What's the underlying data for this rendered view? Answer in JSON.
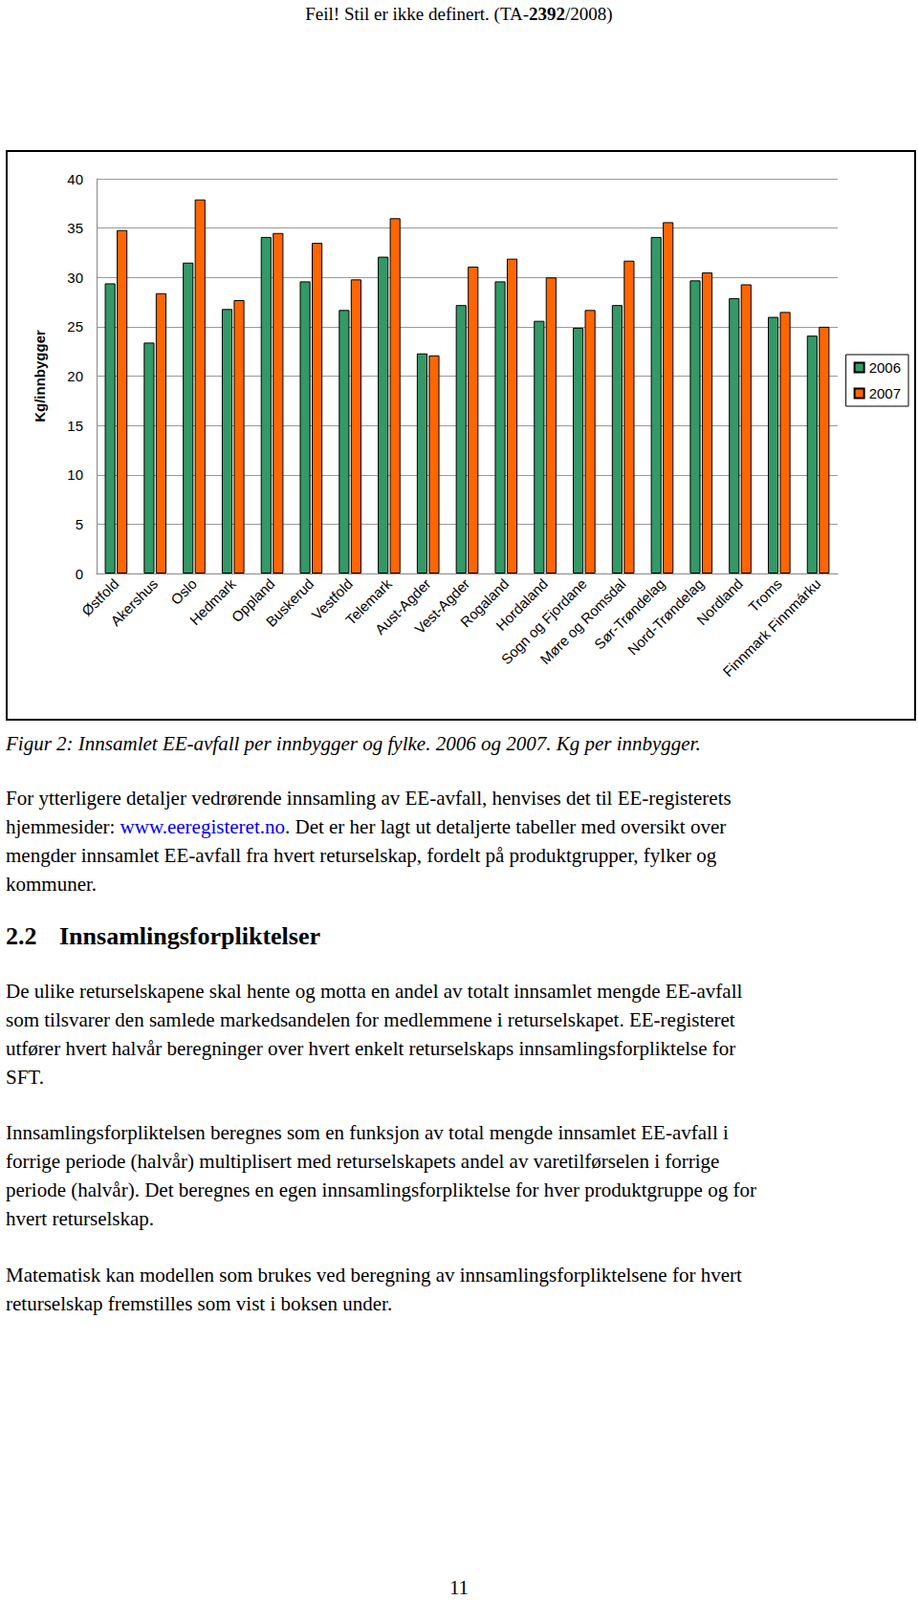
{
  "header": [
    {
      "text": "Feil! Stil er ikke definert. (TA-"
    },
    {
      "text": "2392",
      "bold": true
    },
    {
      "text": "/2008)"
    }
  ],
  "chart_data": {
    "type": "bar",
    "y_label": "Kg/innbygger",
    "categories": [
      "Østfold",
      "Akershus",
      "Oslo",
      "Hedmark",
      "Oppland",
      "Buskerud",
      "Vestfold",
      "Telemark",
      "Aust-Agder",
      "Vest-Agder",
      "Rogaland",
      "Hordaland",
      "Sogn og Fjordane",
      "Møre og Romsdal",
      "Sør-Trøndelag",
      "Nord-Trøndelag",
      "Nordland",
      "Troms",
      "Finnmark Finnmárku"
    ],
    "series": [
      {
        "name": "2006",
        "color": "#339966",
        "values": [
          29.4,
          23.4,
          31.5,
          26.8,
          34.1,
          29.6,
          26.7,
          32.1,
          22.3,
          27.2,
          29.6,
          25.6,
          24.9,
          27.2,
          34.1,
          29.7,
          27.9,
          26.0,
          24.1
        ]
      },
      {
        "name": "2007",
        "color": "#ff6600",
        "values": [
          34.8,
          28.4,
          37.9,
          27.7,
          34.5,
          33.5,
          29.8,
          36.0,
          22.1,
          31.1,
          31.9,
          30.0,
          26.7,
          31.7,
          35.6,
          30.5,
          29.3,
          26.5,
          25.0
        ]
      }
    ],
    "ylim": [
      0,
      40
    ],
    "yticks": [
      0,
      5,
      10,
      15,
      20,
      25,
      30,
      35,
      40
    ],
    "grid": true,
    "legend": "right"
  },
  "caption": "Figur 2: Innsamlet EE-avfall per innbygger og fylke. 2006 og 2007. Kg per innbygger.",
  "paragraph": [
    "For ytterligere detaljer vedrørende innsamling av EE-avfall, henvises det til EE-registerets",
    [
      {
        "text": "hjemmesider: "
      },
      {
        "text": "www.eeregisteret.no",
        "link": true
      },
      {
        "text": ". Det er her lagt ut detaljerte tabeller med oversikt over"
      }
    ],
    "mengder innsamlet EE-avfall fra hvert returselskap, fordelt på produktgrupper, fylker og",
    "kommuner."
  ],
  "section": {
    "number": "2.2",
    "title": "Innsamlingsforpliktelser",
    "paragraphs": [
      [
        "De ulike returselskapene skal hente og motta en andel av totalt innsamlet mengde EE-avfall",
        "som tilsvarer den samlede markedsandelen for medlemmene i returselskapet. EE-registeret",
        "utfører hvert halvår beregninger over hvert enkelt returselskaps innsamlingsforpliktelse for",
        "SFT."
      ],
      [
        "Innsamlingsforpliktelsen beregnes som en funksjon av total mengde innsamlet EE-avfall i",
        "forrige periode (halvår) multiplisert med returselskapets andel av varetilførselen i forrige",
        "periode (halvår). Det beregnes en egen innsamlingsforpliktelse for hver produktgruppe og for",
        "hvert returselskap."
      ],
      [
        "Matematisk kan modellen som brukes ved beregning av innsamlingsforpliktelsene for hvert",
        "returselskap fremstilles som vist i boksen under."
      ]
    ]
  },
  "page_number": 11
}
